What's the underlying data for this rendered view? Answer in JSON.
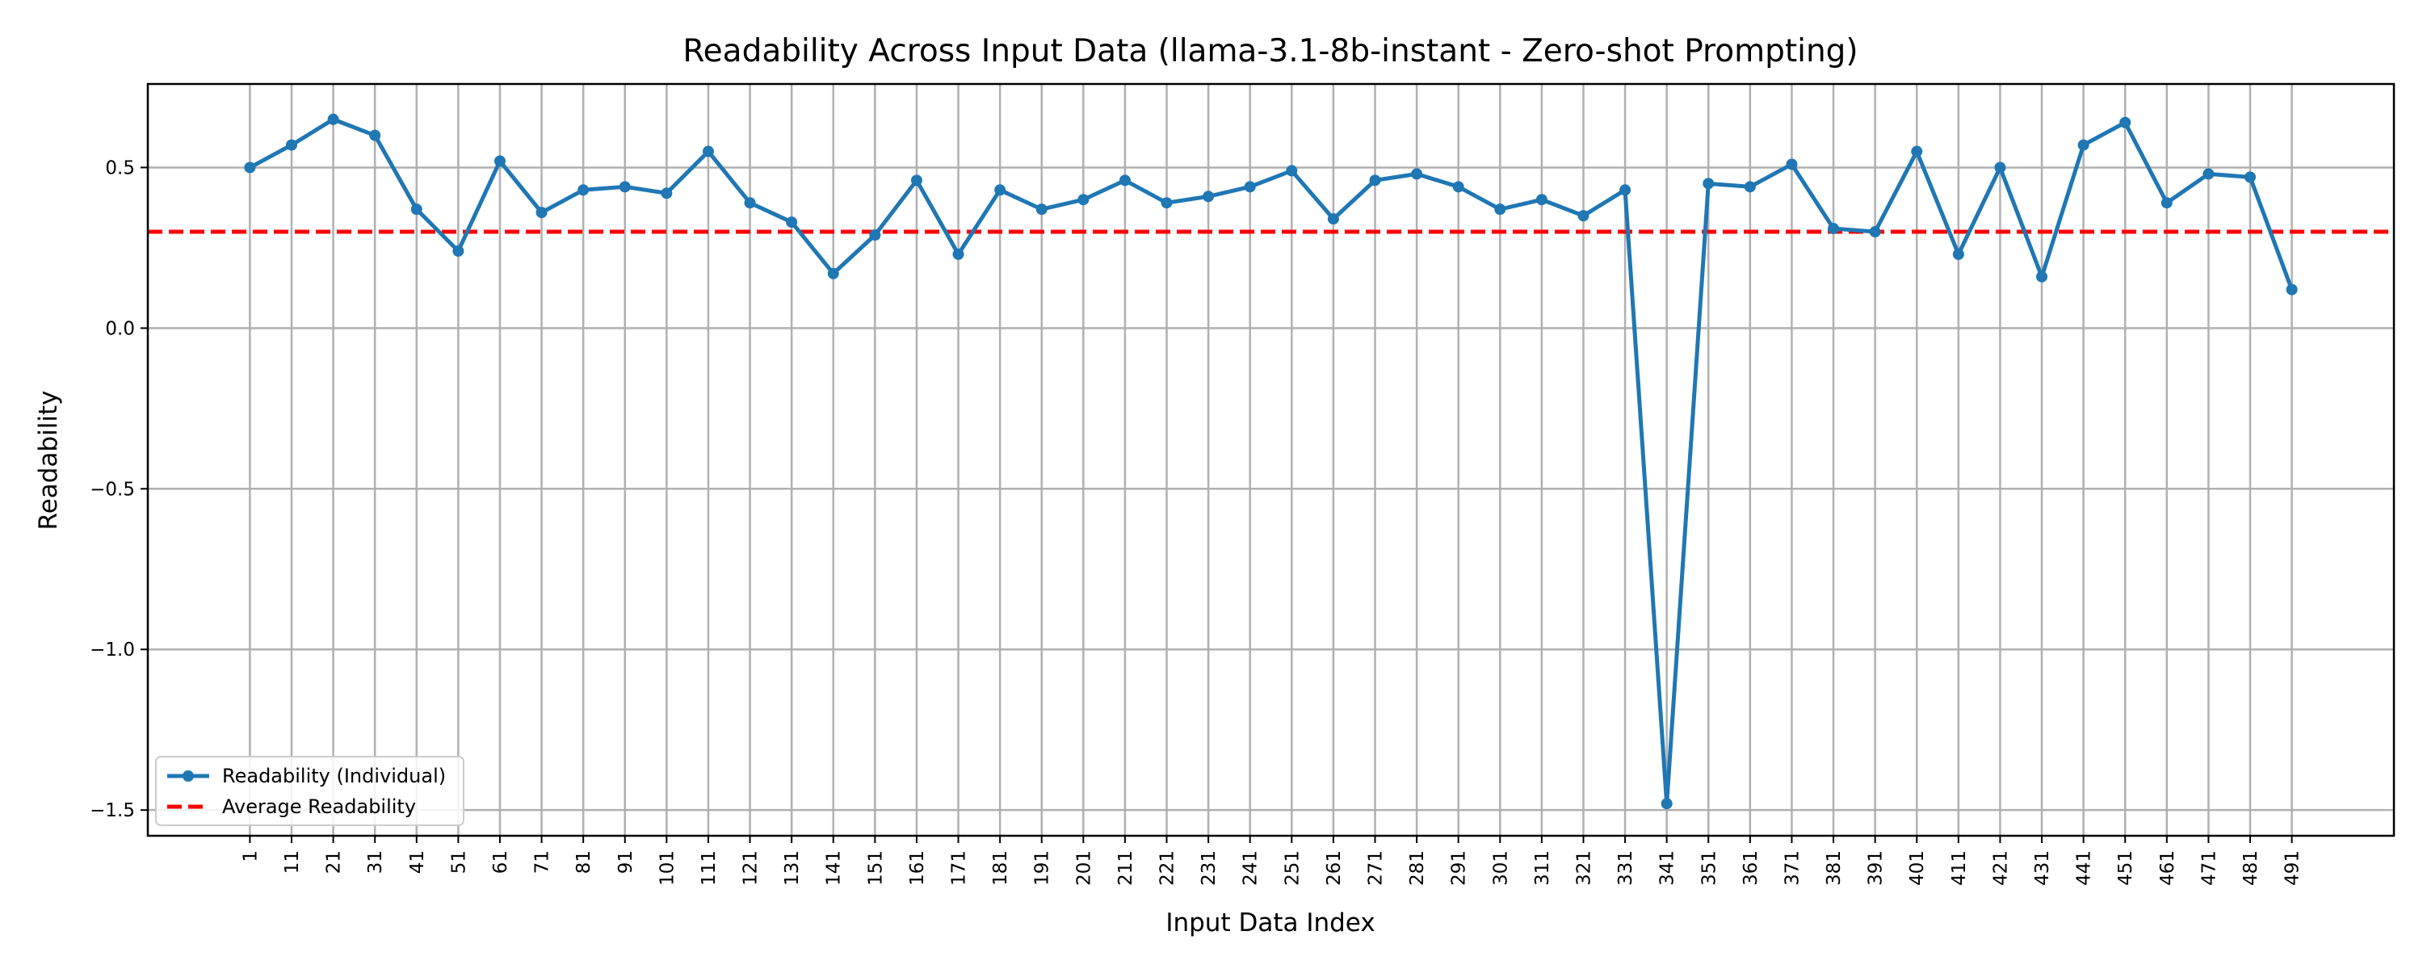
{
  "chart_data": {
    "type": "line",
    "title": "Readability Across Input Data (llama-3.1-8b-instant - Zero-shot Prompting)",
    "xlabel": "Input Data Index",
    "ylabel": "Readability",
    "x": [
      1,
      11,
      21,
      31,
      41,
      51,
      61,
      71,
      81,
      91,
      101,
      111,
      121,
      131,
      141,
      151,
      161,
      171,
      181,
      191,
      201,
      211,
      221,
      231,
      241,
      251,
      261,
      271,
      281,
      291,
      301,
      311,
      321,
      331,
      341,
      351,
      361,
      371,
      381,
      391,
      401,
      411,
      421,
      431,
      441,
      451,
      461,
      471,
      481,
      491
    ],
    "x_tick_labels": [
      "1",
      "11",
      "21",
      "31",
      "41",
      "51",
      "61",
      "71",
      "81",
      "91",
      "101",
      "111",
      "121",
      "131",
      "141",
      "151",
      "161",
      "171",
      "181",
      "191",
      "201",
      "211",
      "221",
      "231",
      "241",
      "251",
      "261",
      "271",
      "281",
      "291",
      "301",
      "311",
      "321",
      "331",
      "341",
      "351",
      "361",
      "371",
      "381",
      "391",
      "401",
      "411",
      "421",
      "431",
      "441",
      "451",
      "461",
      "471",
      "481",
      "491"
    ],
    "xlim": [
      -23.5,
      515.5
    ],
    "ylim": [
      -1.58,
      0.76
    ],
    "yticks": [
      -1.5,
      -1.0,
      -0.5,
      0.0,
      0.5
    ],
    "y_tick_labels": [
      "−1.5",
      "−1.0",
      "−0.5",
      "0.0",
      "0.5"
    ],
    "grid": true,
    "legend_position": "lower-left",
    "series": [
      {
        "name": "Readability (Individual)",
        "color": "#1f77b4",
        "style": "solid",
        "marker": "circle",
        "values": [
          0.5,
          0.57,
          0.65,
          0.6,
          0.37,
          0.24,
          0.52,
          0.36,
          0.43,
          0.44,
          0.42,
          0.55,
          0.39,
          0.33,
          0.17,
          0.29,
          0.46,
          0.23,
          0.43,
          0.37,
          0.4,
          0.46,
          0.39,
          0.41,
          0.44,
          0.49,
          0.34,
          0.46,
          0.48,
          0.44,
          0.37,
          0.4,
          0.35,
          0.43,
          -1.48,
          0.45,
          0.44,
          0.51,
          0.31,
          0.3,
          0.55,
          0.23,
          0.5,
          0.16,
          0.57,
          0.64,
          0.39,
          0.48,
          0.47,
          0.12
        ]
      },
      {
        "name": "Average Readability",
        "color": "#ff0000",
        "style": "dashed",
        "marker": "none",
        "constant_y": 0.3
      }
    ]
  }
}
